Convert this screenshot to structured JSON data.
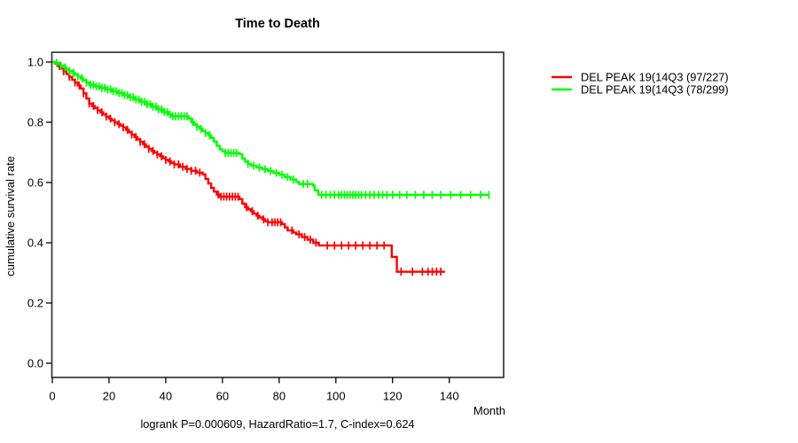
{
  "title": "Time to Death",
  "footer": "logrank P=0.000609, HazardRatio=1.7, C-index=0.624",
  "axes": {
    "x_label": "Month",
    "y_label": "cumulative survival rate",
    "x_ticks": [
      0,
      20,
      40,
      60,
      80,
      100,
      120,
      140
    ],
    "y_ticks": [
      "0.0",
      "0.2",
      "0.4",
      "0.6",
      "0.8",
      "1.0"
    ]
  },
  "legend": {
    "items": [
      {
        "label": "DEL PEAK 19(14Q3 (97/227)",
        "color": "#ff0000"
      },
      {
        "label": "DEL PEAK 19(14Q3 (78/299)",
        "color": "#00ff00"
      }
    ]
  },
  "chart_data": {
    "type": "line",
    "subtype": "kaplan-meier-step",
    "title": "Time to Death",
    "xlabel": "Month",
    "ylabel": "cumulative survival rate",
    "xlim": [
      0,
      159
    ],
    "ylim": [
      0.0,
      1.0
    ],
    "grid": false,
    "legend_position": "right-outside",
    "series": [
      {
        "name": "DEL PEAK 19(14Q3 (97/227)",
        "color": "#ff0000",
        "events_n": "97/227",
        "points": [
          [
            0,
            1.0
          ],
          [
            1,
            0.995
          ],
          [
            2,
            0.987
          ],
          [
            3,
            0.978
          ],
          [
            4,
            0.969
          ],
          [
            5,
            0.96
          ],
          [
            6,
            0.951
          ],
          [
            7,
            0.941
          ],
          [
            8,
            0.932
          ],
          [
            9,
            0.922
          ],
          [
            10,
            0.912
          ],
          [
            11,
            0.896
          ],
          [
            12,
            0.879
          ],
          [
            13,
            0.862
          ],
          [
            14,
            0.854
          ],
          [
            15,
            0.847
          ],
          [
            16,
            0.84
          ],
          [
            17,
            0.833
          ],
          [
            18,
            0.826
          ],
          [
            19,
            0.819
          ],
          [
            20,
            0.812
          ],
          [
            21,
            0.806
          ],
          [
            22,
            0.8
          ],
          [
            23,
            0.794
          ],
          [
            24,
            0.789
          ],
          [
            25,
            0.783
          ],
          [
            26,
            0.775
          ],
          [
            27,
            0.767
          ],
          [
            28,
            0.759
          ],
          [
            29,
            0.751
          ],
          [
            30,
            0.743
          ],
          [
            31,
            0.735
          ],
          [
            32,
            0.727
          ],
          [
            33,
            0.719
          ],
          [
            34,
            0.712
          ],
          [
            35,
            0.705
          ],
          [
            36,
            0.699
          ],
          [
            37,
            0.693
          ],
          [
            38,
            0.687
          ],
          [
            39,
            0.681
          ],
          [
            40,
            0.675
          ],
          [
            41,
            0.67
          ],
          [
            42,
            0.665
          ],
          [
            43,
            0.66
          ],
          [
            45,
            0.652
          ],
          [
            47,
            0.645
          ],
          [
            49,
            0.639
          ],
          [
            51,
            0.633
          ],
          [
            53,
            0.627
          ],
          [
            54,
            0.612
          ],
          [
            55,
            0.597
          ],
          [
            56,
            0.582
          ],
          [
            57,
            0.57
          ],
          [
            58,
            0.56
          ],
          [
            59,
            0.553
          ],
          [
            66,
            0.545
          ],
          [
            67,
            0.53
          ],
          [
            68,
            0.518
          ],
          [
            69,
            0.511
          ],
          [
            70,
            0.505
          ],
          [
            71,
            0.497
          ],
          [
            72,
            0.49
          ],
          [
            73,
            0.484
          ],
          [
            74,
            0.478
          ],
          [
            75,
            0.472
          ],
          [
            76,
            0.468
          ],
          [
            81,
            0.462
          ],
          [
            82,
            0.451
          ],
          [
            83,
            0.441
          ],
          [
            85,
            0.434
          ],
          [
            86,
            0.428
          ],
          [
            88,
            0.419
          ],
          [
            90,
            0.41
          ],
          [
            92,
            0.4
          ],
          [
            94,
            0.391
          ],
          [
            119,
            0.391
          ],
          [
            119.7,
            0.353
          ],
          [
            121.5,
            0.304
          ],
          [
            138.5,
            0.304
          ]
        ],
        "censor_times": [
          2.5,
          4,
          6,
          8,
          9.5,
          11,
          13,
          14.5,
          16,
          17.5,
          19,
          20.5,
          22,
          23.5,
          25,
          26.5,
          28,
          29.5,
          31,
          32.5,
          34,
          35.5,
          37,
          38.5,
          40,
          41.5,
          43,
          44.5,
          46,
          47.5,
          49,
          50.5,
          52,
          58.5,
          59.5,
          60.5,
          61.5,
          62.5,
          63.5,
          64.5,
          65.5,
          68.5,
          70.5,
          72.5,
          74.5,
          76,
          77.5,
          78.5,
          79.5,
          80.5,
          84.5,
          87,
          89,
          91,
          93,
          97,
          99.5,
          102,
          104.5,
          107,
          109.5,
          112,
          114.5,
          117,
          123,
          127,
          130.5,
          132.5,
          134,
          135.5,
          137
        ]
      },
      {
        "name": "DEL PEAK 19(14Q3 (78/299)",
        "color": "#00ff00",
        "events_n": "78/299",
        "points": [
          [
            0,
            1.0
          ],
          [
            1,
            0.997
          ],
          [
            2,
            0.993
          ],
          [
            3,
            0.988
          ],
          [
            4,
            0.982
          ],
          [
            5,
            0.976
          ],
          [
            6,
            0.97
          ],
          [
            7,
            0.964
          ],
          [
            8,
            0.958
          ],
          [
            9,
            0.952
          ],
          [
            10,
            0.946
          ],
          [
            11,
            0.939
          ],
          [
            12,
            0.932
          ],
          [
            13,
            0.924
          ],
          [
            15,
            0.919
          ],
          [
            17,
            0.914
          ],
          [
            19,
            0.909
          ],
          [
            21,
            0.903
          ],
          [
            23,
            0.897
          ],
          [
            25,
            0.89
          ],
          [
            27,
            0.883
          ],
          [
            29,
            0.876
          ],
          [
            31,
            0.868
          ],
          [
            33,
            0.86
          ],
          [
            35,
            0.852
          ],
          [
            37,
            0.843
          ],
          [
            39,
            0.834
          ],
          [
            41,
            0.826
          ],
          [
            42,
            0.82
          ],
          [
            48,
            0.813
          ],
          [
            49,
            0.801
          ],
          [
            50,
            0.792
          ],
          [
            51,
            0.785
          ],
          [
            52,
            0.778
          ],
          [
            53,
            0.771
          ],
          [
            54,
            0.764
          ],
          [
            55,
            0.757
          ],
          [
            56,
            0.748
          ],
          [
            57,
            0.736
          ],
          [
            58,
            0.722
          ],
          [
            59,
            0.71
          ],
          [
            60,
            0.703
          ],
          [
            61,
            0.698
          ],
          [
            66,
            0.694
          ],
          [
            67,
            0.679
          ],
          [
            68,
            0.669
          ],
          [
            69,
            0.662
          ],
          [
            70,
            0.656
          ],
          [
            72,
            0.65
          ],
          [
            74,
            0.644
          ],
          [
            76,
            0.638
          ],
          [
            78,
            0.632
          ],
          [
            80,
            0.626
          ],
          [
            82,
            0.618
          ],
          [
            84,
            0.61
          ],
          [
            86,
            0.602
          ],
          [
            87,
            0.595
          ],
          [
            92,
            0.59
          ],
          [
            92.5,
            0.574
          ],
          [
            93.8,
            0.559
          ],
          [
            154,
            0.559
          ]
        ],
        "censor_times": [
          1.5,
          3,
          4.5,
          6,
          7.5,
          9,
          10.5,
          12,
          13.5,
          14.5,
          15.5,
          16.5,
          17.5,
          18.5,
          19.5,
          20.5,
          21.5,
          22.5,
          23.5,
          24.5,
          25.5,
          26.5,
          27.5,
          28.5,
          29.5,
          30.5,
          31.5,
          32.5,
          33.5,
          34.5,
          35.5,
          36.5,
          37.5,
          38.5,
          39.5,
          40.5,
          41.5,
          42.5,
          43.5,
          44.5,
          45.5,
          46.5,
          47.5,
          49.5,
          51,
          52.5,
          54,
          55.5,
          61,
          62,
          63,
          64,
          65,
          69,
          71,
          73,
          75,
          77,
          79,
          81,
          83,
          85,
          88.5,
          90,
          95,
          96.5,
          98,
          99.5,
          101,
          102,
          103,
          104,
          105,
          106,
          107,
          108,
          109,
          110.5,
          112,
          113.5,
          115,
          116.5,
          118,
          120,
          122.5,
          125,
          128,
          131,
          134,
          137,
          140.5,
          144,
          147.5,
          151,
          154
        ]
      }
    ]
  },
  "colors": {
    "series_red": "#ff0000",
    "series_green": "#00ff00",
    "box": "#404040",
    "text": "#000000"
  }
}
